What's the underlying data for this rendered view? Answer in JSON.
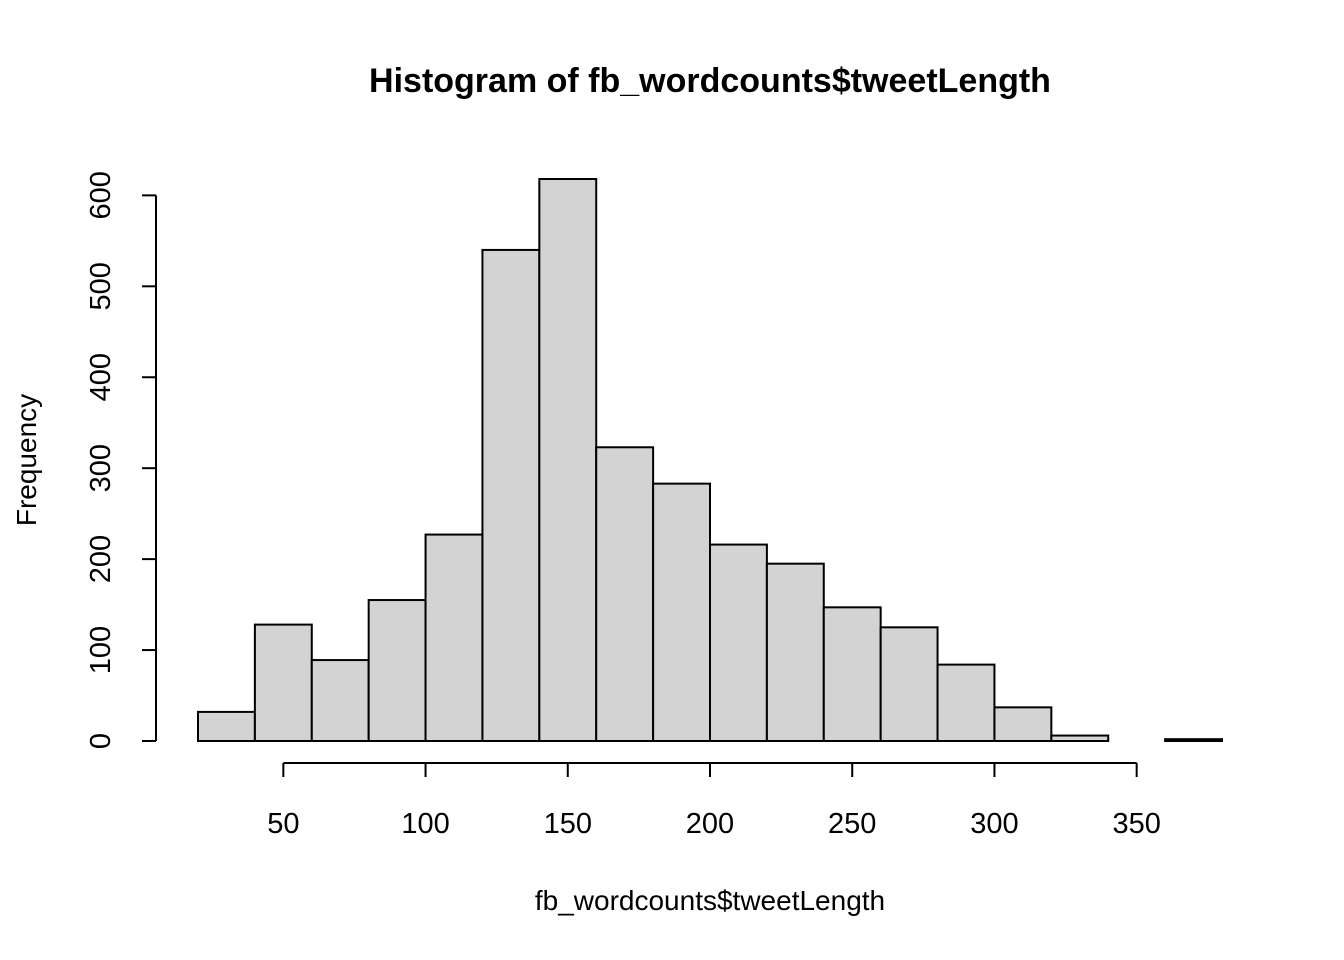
{
  "chart_data": {
    "type": "bar",
    "title": "Histogram of fb_wordcounts$tweetLength",
    "xlabel": "fb_wordcounts$tweetLength",
    "ylabel": "Frequency",
    "bins": [
      {
        "start": 20,
        "end": 40,
        "count": 32
      },
      {
        "start": 40,
        "end": 60,
        "count": 128
      },
      {
        "start": 60,
        "end": 80,
        "count": 89
      },
      {
        "start": 80,
        "end": 100,
        "count": 155
      },
      {
        "start": 100,
        "end": 120,
        "count": 227
      },
      {
        "start": 120,
        "end": 140,
        "count": 540
      },
      {
        "start": 140,
        "end": 160,
        "count": 618
      },
      {
        "start": 160,
        "end": 180,
        "count": 323
      },
      {
        "start": 180,
        "end": 200,
        "count": 283
      },
      {
        "start": 200,
        "end": 220,
        "count": 216
      },
      {
        "start": 220,
        "end": 240,
        "count": 195
      },
      {
        "start": 240,
        "end": 260,
        "count": 147
      },
      {
        "start": 260,
        "end": 280,
        "count": 125
      },
      {
        "start": 280,
        "end": 300,
        "count": 84
      },
      {
        "start": 300,
        "end": 320,
        "count": 37
      },
      {
        "start": 320,
        "end": 340,
        "count": 6
      },
      {
        "start": 340,
        "end": 360,
        "count": 0
      },
      {
        "start": 360,
        "end": 380,
        "count": 2
      }
    ],
    "xticks": [
      50,
      100,
      150,
      200,
      250,
      300,
      350
    ],
    "yticks": [
      0,
      100,
      200,
      300,
      400,
      500,
      600
    ],
    "xlim": [
      20,
      380
    ],
    "ylim": [
      0,
      618
    ],
    "grid": false,
    "bar_color": "#d3d3d3",
    "edge_color": "#000000"
  }
}
